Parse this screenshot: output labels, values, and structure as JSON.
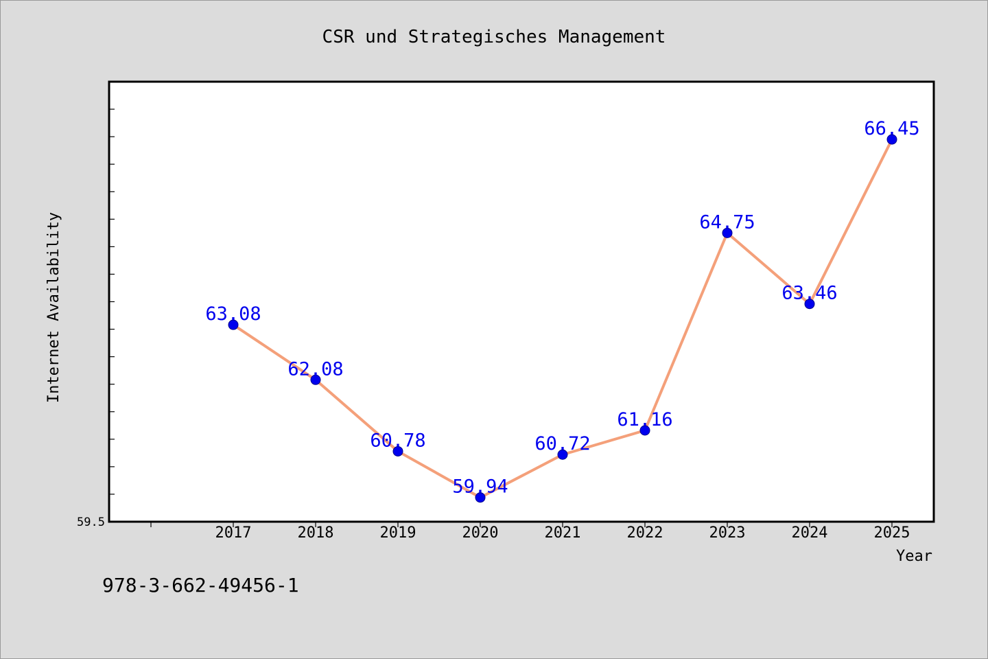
{
  "chart_data": {
    "type": "line",
    "title": "CSR und Strategisches Management",
    "xlabel": "Year",
    "ylabel": "Internet Availability",
    "categories": [
      "2017",
      "2018",
      "2019",
      "2020",
      "2021",
      "2022",
      "2023",
      "2024",
      "2025"
    ],
    "series": [
      {
        "values": [
          63.08,
          62.08,
          60.78,
          59.94,
          60.72,
          61.16,
          64.75,
          63.46,
          66.45
        ],
        "labels": [
          "63.08",
          "62.08",
          "60.78",
          "59.94",
          "60.72",
          "61.16",
          "64.75",
          "63.46",
          "66.45"
        ],
        "line_color": "#f4a07a",
        "marker_color": "#0000ee"
      }
    ],
    "ylim": [
      59.5,
      67.5
    ],
    "yticks_labeled": [
      "59.5"
    ],
    "grid": false,
    "legend": "none"
  },
  "footer": {
    "isbn": "978-3-662-49456-1"
  }
}
